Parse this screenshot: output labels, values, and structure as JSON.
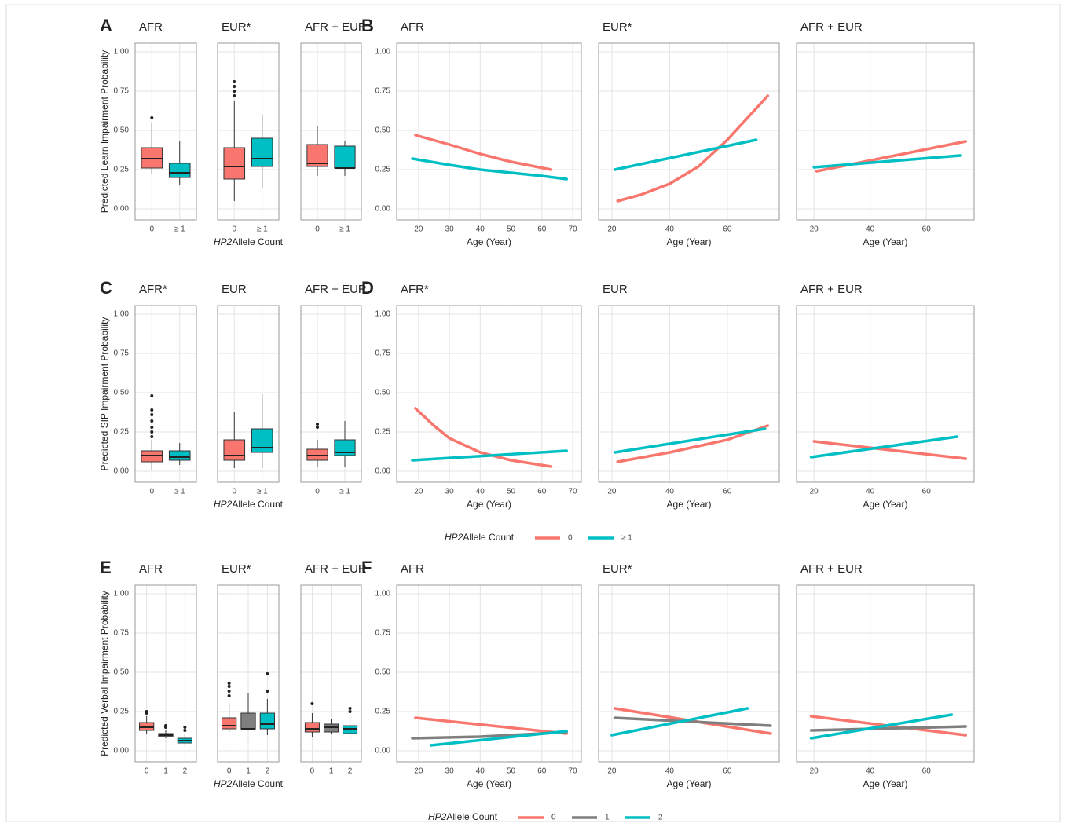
{
  "chart_data": [
    {
      "type": "box",
      "panel": "A",
      "title": "AFR",
      "ylabel": "Predicted Learn Impairment Probability",
      "ylim": [
        -0.07,
        1.055
      ],
      "yticks": [
        {
          "value": 0,
          "label": "0.00"
        },
        {
          "value": 0.25,
          "label": "0.25"
        },
        {
          "value": 0.5,
          "label": "0.50"
        },
        {
          "value": 0.75,
          "label": "0.75"
        },
        {
          "value": 1,
          "label": "1.00"
        }
      ],
      "categories": [
        "0",
        "≥ 1"
      ],
      "boxes": [
        {
          "color": "#f8766d",
          "min": 0.22,
          "q1": 0.26,
          "median": 0.32,
          "q3": 0.39,
          "max": 0.55,
          "outliers": [
            0.58
          ]
        },
        {
          "color": "#00bfc4",
          "min": 0.15,
          "q1": 0.2,
          "median": 0.23,
          "q3": 0.29,
          "max": 0.43,
          "outliers": []
        }
      ]
    },
    {
      "type": "box",
      "title": "EUR*",
      "xlabel_italic": "HP2",
      "xlabel": "Allele Count",
      "ylim": [
        -0.07,
        1.055
      ],
      "yticks": [
        0,
        0.25,
        0.5,
        0.75,
        1
      ],
      "ytick_labels": false,
      "categories": [
        "0",
        "≥ 1"
      ],
      "boxes": [
        {
          "color": "#f8766d",
          "min": 0.05,
          "q1": 0.19,
          "median": 0.27,
          "q3": 0.39,
          "max": 0.69,
          "outliers": [
            0.72,
            0.75,
            0.78,
            0.81
          ]
        },
        {
          "color": "#00bfc4",
          "min": 0.13,
          "q1": 0.27,
          "median": 0.32,
          "q3": 0.45,
          "max": 0.6,
          "outliers": []
        }
      ]
    },
    {
      "type": "box",
      "title": "AFR + EUR",
      "ylim": [
        -0.07,
        1.055
      ],
      "yticks": [
        0,
        0.25,
        0.5,
        0.75,
        1
      ],
      "ytick_labels": false,
      "categories": [
        "0",
        "≥ 1"
      ],
      "boxes": [
        {
          "color": "#f8766d",
          "min": 0.21,
          "q1": 0.27,
          "median": 0.29,
          "q3": 0.41,
          "max": 0.53,
          "outliers": []
        },
        {
          "color": "#00bfc4",
          "min": 0.21,
          "q1": 0.26,
          "median": 0.26,
          "q3": 0.4,
          "max": 0.43,
          "outliers": []
        }
      ]
    },
    {
      "type": "line",
      "panel": "B",
      "title": "AFR",
      "xlabel": "Age (Year)",
      "xlim": [
        12.9,
        72.8
      ],
      "xticks": [
        20,
        30,
        40,
        50,
        60,
        70
      ],
      "ylim": [
        -0.07,
        1.055
      ],
      "yticks": [
        {
          "value": 0,
          "label": "0.00"
        },
        {
          "value": 0.25,
          "label": "0.25"
        },
        {
          "value": 0.5,
          "label": "0.50"
        },
        {
          "value": 0.75,
          "label": "0.75"
        },
        {
          "value": 1,
          "label": "1.00"
        }
      ],
      "series": [
        {
          "color": "#f8766d",
          "x": [
            19,
            30,
            40,
            50,
            63
          ],
          "values": [
            0.47,
            0.41,
            0.35,
            0.3,
            0.25
          ]
        },
        {
          "color": "#00bfc4",
          "x": [
            18,
            30,
            40,
            50,
            60,
            68
          ],
          "values": [
            0.32,
            0.28,
            0.25,
            0.23,
            0.21,
            0.19
          ]
        }
      ]
    },
    {
      "type": "line",
      "title": "EUR*",
      "xlabel": "Age (Year)",
      "xlim": [
        15.4,
        78
      ],
      "xticks": [
        20,
        40,
        60
      ],
      "ylim": [
        -0.07,
        1.055
      ],
      "yticks": [
        0,
        0.25,
        0.5,
        0.75,
        1
      ],
      "ytick_labels": false,
      "series": [
        {
          "color": "#f8766d",
          "x": [
            22,
            30,
            40,
            50,
            60,
            74
          ],
          "values": [
            0.05,
            0.09,
            0.16,
            0.27,
            0.44,
            0.72
          ]
        },
        {
          "color": "#00bfc4",
          "x": [
            21,
            70
          ],
          "values": [
            0.25,
            0.44
          ]
        }
      ]
    },
    {
      "type": "line",
      "title": "AFR + EUR",
      "xlabel": "Age (Year)",
      "xlim": [
        13.8,
        77
      ],
      "xticks": [
        20,
        40,
        60
      ],
      "ylim": [
        -0.07,
        1.055
      ],
      "yticks": [
        0,
        0.25,
        0.5,
        0.75,
        1
      ],
      "ytick_labels": false,
      "series": [
        {
          "color": "#f8766d",
          "x": [
            21,
            74
          ],
          "values": [
            0.24,
            0.43
          ]
        },
        {
          "color": "#00bfc4",
          "x": [
            20,
            72
          ],
          "values": [
            0.265,
            0.34
          ]
        }
      ]
    },
    {
      "type": "box",
      "panel": "C",
      "title": "AFR*",
      "ylabel": "Predicted SIP Impairment Probability",
      "ylim": [
        -0.07,
        1.055
      ],
      "yticks": [
        {
          "value": 0,
          "label": "0.00"
        },
        {
          "value": 0.25,
          "label": "0.25"
        },
        {
          "value": 0.5,
          "label": "0.50"
        },
        {
          "value": 0.75,
          "label": "0.75"
        },
        {
          "value": 1,
          "label": "1.00"
        }
      ],
      "categories": [
        "0",
        "≥ 1"
      ],
      "boxes": [
        {
          "color": "#f8766d",
          "min": 0.01,
          "q1": 0.06,
          "median": 0.1,
          "q3": 0.13,
          "max": 0.2,
          "outliers": [
            0.22,
            0.25,
            0.28,
            0.32,
            0.36,
            0.39,
            0.48
          ]
        },
        {
          "color": "#00bfc4",
          "min": 0.04,
          "q1": 0.07,
          "median": 0.09,
          "q3": 0.13,
          "max": 0.18,
          "outliers": []
        }
      ]
    },
    {
      "type": "box",
      "title": "EUR",
      "xlabel_italic": "HP2",
      "xlabel": "Allele Count",
      "ylim": [
        -0.07,
        1.055
      ],
      "yticks": [
        0,
        0.25,
        0.5,
        0.75,
        1
      ],
      "ytick_labels": false,
      "categories": [
        "0",
        "≥ 1"
      ],
      "boxes": [
        {
          "color": "#f8766d",
          "min": 0.02,
          "q1": 0.07,
          "median": 0.1,
          "q3": 0.2,
          "max": 0.38,
          "outliers": []
        },
        {
          "color": "#00bfc4",
          "min": 0.02,
          "q1": 0.12,
          "median": 0.15,
          "q3": 0.27,
          "max": 0.49,
          "outliers": []
        }
      ]
    },
    {
      "type": "box",
      "title": "AFR + EUR",
      "ylim": [
        -0.07,
        1.055
      ],
      "yticks": [
        0,
        0.25,
        0.5,
        0.75,
        1
      ],
      "ytick_labels": false,
      "categories": [
        "0",
        "≥ 1"
      ],
      "boxes": [
        {
          "color": "#f8766d",
          "min": 0.03,
          "q1": 0.07,
          "median": 0.1,
          "q3": 0.14,
          "max": 0.2,
          "outliers": [
            0.28,
            0.3
          ]
        },
        {
          "color": "#00bfc4",
          "min": 0.03,
          "q1": 0.1,
          "median": 0.12,
          "q3": 0.2,
          "max": 0.32,
          "outliers": []
        }
      ]
    },
    {
      "type": "line",
      "panel": "D",
      "title": "AFR*",
      "xlabel": "Age (Year)",
      "xlim": [
        12.9,
        72.8
      ],
      "xticks": [
        20,
        30,
        40,
        50,
        60,
        70
      ],
      "ylim": [
        -0.07,
        1.055
      ],
      "yticks": [
        {
          "value": 0,
          "label": "0.00"
        },
        {
          "value": 0.25,
          "label": "0.25"
        },
        {
          "value": 0.5,
          "label": "0.50"
        },
        {
          "value": 0.75,
          "label": "0.75"
        },
        {
          "value": 1,
          "label": "1.00"
        }
      ],
      "series": [
        {
          "color": "#f8766d",
          "x": [
            19,
            25,
            30,
            40,
            50,
            63
          ],
          "values": [
            0.4,
            0.29,
            0.21,
            0.12,
            0.07,
            0.03
          ]
        },
        {
          "color": "#00bfc4",
          "x": [
            18,
            68
          ],
          "values": [
            0.07,
            0.13
          ]
        }
      ]
    },
    {
      "type": "line",
      "title": "EUR",
      "xlabel": "Age (Year)",
      "xlim": [
        15.4,
        78
      ],
      "xticks": [
        20,
        40,
        60
      ],
      "ylim": [
        -0.07,
        1.055
      ],
      "yticks": [
        0,
        0.25,
        0.5,
        0.75,
        1
      ],
      "ytick_labels": false,
      "series": [
        {
          "color": "#f8766d",
          "x": [
            22,
            40,
            60,
            74
          ],
          "values": [
            0.06,
            0.12,
            0.2,
            0.29
          ]
        },
        {
          "color": "#00bfc4",
          "x": [
            21,
            73
          ],
          "values": [
            0.12,
            0.27
          ]
        }
      ]
    },
    {
      "type": "line",
      "title": "AFR + EUR",
      "xlabel": "Age (Year)",
      "xlim": [
        13.8,
        77
      ],
      "xticks": [
        20,
        40,
        60
      ],
      "ylim": [
        -0.07,
        1.055
      ],
      "yticks": [
        0,
        0.25,
        0.5,
        0.75,
        1
      ],
      "ytick_labels": false,
      "series": [
        {
          "color": "#f8766d",
          "x": [
            20,
            74
          ],
          "values": [
            0.19,
            0.08
          ]
        },
        {
          "color": "#00bfc4",
          "x": [
            19,
            71
          ],
          "values": [
            0.09,
            0.22
          ]
        }
      ]
    },
    {
      "type": "box",
      "panel": "E",
      "title": "AFR",
      "ylabel": "Predicted Verbal Impairment Probability",
      "ylim": [
        -0.07,
        1.055
      ],
      "yticks": [
        {
          "value": 0,
          "label": "0.00"
        },
        {
          "value": 0.25,
          "label": "0.25"
        },
        {
          "value": 0.5,
          "label": "0.50"
        },
        {
          "value": 0.75,
          "label": "0.75"
        },
        {
          "value": 1,
          "label": "1.00"
        }
      ],
      "categories": [
        "0",
        "1",
        "2"
      ],
      "boxes": [
        {
          "color": "#f8766d",
          "min": 0.11,
          "q1": 0.13,
          "median": 0.15,
          "q3": 0.18,
          "max": 0.22,
          "outliers": [
            0.24,
            0.25
          ]
        },
        {
          "color": "#7f7f7f",
          "min": 0.08,
          "q1": 0.09,
          "median": 0.1,
          "q3": 0.11,
          "max": 0.13,
          "outliers": [
            0.15,
            0.16
          ]
        },
        {
          "color": "#00bfc4",
          "min": 0.04,
          "q1": 0.05,
          "median": 0.065,
          "q3": 0.08,
          "max": 0.11,
          "outliers": [
            0.13,
            0.15
          ]
        }
      ]
    },
    {
      "type": "box",
      "title": "EUR*",
      "xlabel_italic": "HP2",
      "xlabel": "Allele Count",
      "ylim": [
        -0.07,
        1.055
      ],
      "yticks": [
        0,
        0.25,
        0.5,
        0.75,
        1
      ],
      "ytick_labels": false,
      "categories": [
        "0",
        "1",
        "2"
      ],
      "boxes": [
        {
          "color": "#f8766d",
          "min": 0.12,
          "q1": 0.14,
          "median": 0.16,
          "q3": 0.21,
          "max": 0.3,
          "outliers": [
            0.35,
            0.38,
            0.41,
            0.43
          ]
        },
        {
          "color": "#7f7f7f",
          "min": 0.13,
          "q1": 0.14,
          "median": 0.14,
          "q3": 0.24,
          "max": 0.37,
          "outliers": []
        },
        {
          "color": "#00bfc4",
          "min": 0.1,
          "q1": 0.14,
          "median": 0.17,
          "q3": 0.24,
          "max": 0.33,
          "outliers": [
            0.38,
            0.49
          ]
        }
      ]
    },
    {
      "type": "box",
      "title": "AFR + EUR",
      "ylim": [
        -0.07,
        1.055
      ],
      "yticks": [
        0,
        0.25,
        0.5,
        0.75,
        1
      ],
      "ytick_labels": false,
      "categories": [
        "0",
        "1",
        "2"
      ],
      "boxes": [
        {
          "color": "#f8766d",
          "min": 0.09,
          "q1": 0.12,
          "median": 0.14,
          "q3": 0.18,
          "max": 0.24,
          "outliers": [
            0.3
          ]
        },
        {
          "color": "#7f7f7f",
          "min": 0.11,
          "q1": 0.12,
          "median": 0.15,
          "q3": 0.17,
          "max": 0.2,
          "outliers": []
        },
        {
          "color": "#00bfc4",
          "min": 0.07,
          "q1": 0.11,
          "median": 0.14,
          "q3": 0.16,
          "max": 0.23,
          "outliers": [
            0.25,
            0.27
          ]
        }
      ]
    },
    {
      "type": "line",
      "panel": "F",
      "title": "AFR",
      "xlabel": "Age (Year)",
      "xlim": [
        12.9,
        72.8
      ],
      "xticks": [
        20,
        30,
        40,
        50,
        60,
        70
      ],
      "ylim": [
        -0.07,
        1.055
      ],
      "yticks": [
        {
          "value": 0,
          "label": "0.00"
        },
        {
          "value": 0.25,
          "label": "0.25"
        },
        {
          "value": 0.5,
          "label": "0.50"
        },
        {
          "value": 0.75,
          "label": "0.75"
        },
        {
          "value": 1,
          "label": "1.00"
        }
      ],
      "series": [
        {
          "color": "#f8766d",
          "x": [
            19,
            68
          ],
          "values": [
            0.21,
            0.11
          ]
        },
        {
          "color": "#7f7f7f",
          "x": [
            18,
            40,
            60,
            68
          ],
          "values": [
            0.08,
            0.09,
            0.11,
            0.12
          ]
        },
        {
          "color": "#00bfc4",
          "x": [
            24,
            68
          ],
          "values": [
            0.035,
            0.125
          ]
        }
      ]
    },
    {
      "type": "line",
      "title": "EUR*",
      "xlabel": "Age (Year)",
      "xlim": [
        15.4,
        78
      ],
      "xticks": [
        20,
        40,
        60
      ],
      "ylim": [
        -0.07,
        1.055
      ],
      "yticks": [
        0,
        0.25,
        0.5,
        0.75,
        1
      ],
      "ytick_labels": false,
      "series": [
        {
          "color": "#f8766d",
          "x": [
            21,
            75
          ],
          "values": [
            0.27,
            0.11
          ]
        },
        {
          "color": "#7f7f7f",
          "x": [
            21,
            75
          ],
          "values": [
            0.21,
            0.16
          ]
        },
        {
          "color": "#00bfc4",
          "x": [
            20,
            67
          ],
          "values": [
            0.1,
            0.27
          ]
        }
      ]
    },
    {
      "type": "line",
      "title": "AFR + EUR",
      "xlabel": "Age (Year)",
      "xlim": [
        13.8,
        77
      ],
      "xticks": [
        20,
        40,
        60
      ],
      "ylim": [
        -0.07,
        1.055
      ],
      "yticks": [
        0,
        0.25,
        0.5,
        0.75,
        1
      ],
      "ytick_labels": false,
      "series": [
        {
          "color": "#f8766d",
          "x": [
            19,
            74
          ],
          "values": [
            0.22,
            0.1
          ]
        },
        {
          "color": "#7f7f7f",
          "x": [
            19,
            74
          ],
          "values": [
            0.13,
            0.155
          ]
        },
        {
          "color": "#00bfc4",
          "x": [
            19,
            69
          ],
          "values": [
            0.08,
            0.23
          ]
        }
      ]
    }
  ],
  "legends": [
    {
      "title_italic": "HP2",
      "title": "Allele Count",
      "items": [
        {
          "name": "0",
          "color": "#f8766d"
        },
        {
          "name": "≥ 1",
          "color": "#00bfc4"
        }
      ]
    },
    {
      "title_italic": "HP2",
      "title": "Allele Count",
      "items": [
        {
          "name": "0",
          "color": "#f8766d"
        },
        {
          "name": "1",
          "color": "#7f7f7f"
        },
        {
          "name": "2",
          "color": "#00bfc4"
        }
      ]
    }
  ]
}
